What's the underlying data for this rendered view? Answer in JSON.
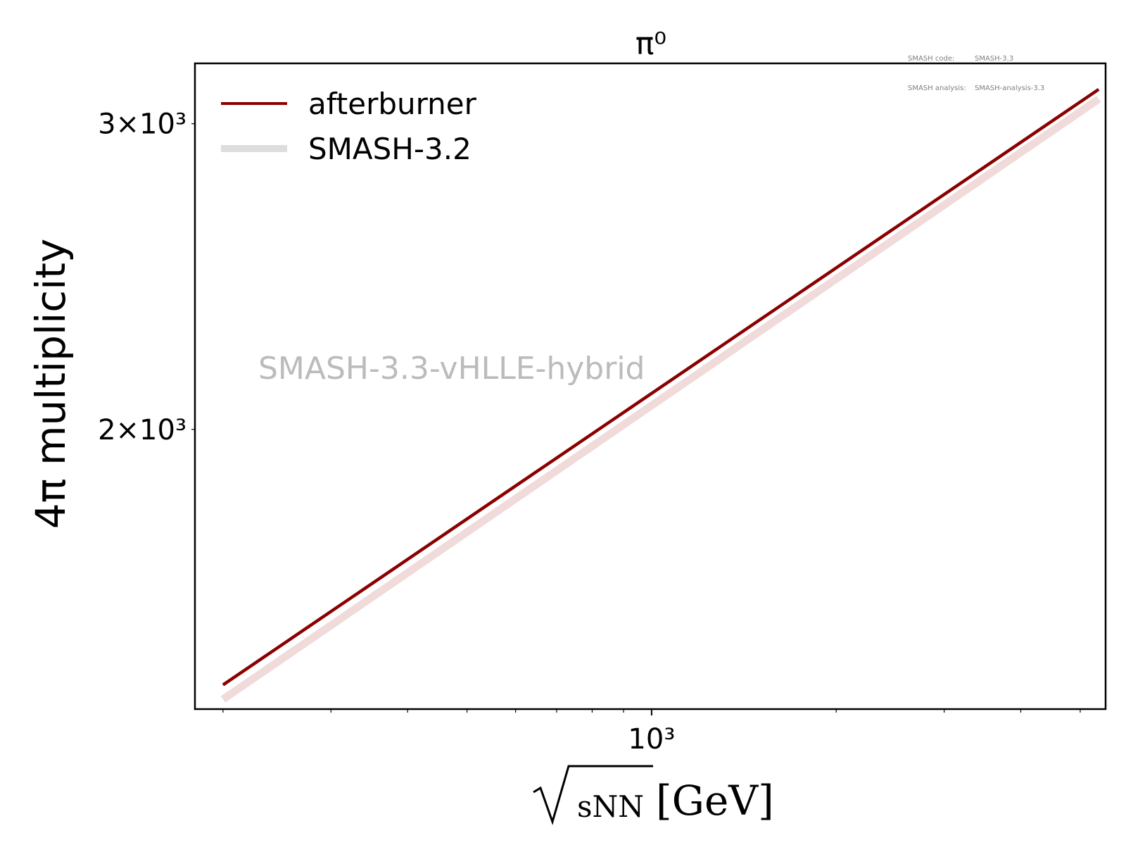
{
  "header_info": {
    "code_label": "SMASH code:",
    "code_value": "SMASH-3.3",
    "analysis_label": "SMASH analysis:",
    "analysis_value": "SMASH-analysis-3.3"
  },
  "chart_data": {
    "type": "line",
    "title": "π⁰",
    "xlabel": "√sNN [GeV]",
    "ylabel": "4π multiplicity",
    "x_scale": "log",
    "y_scale": "log",
    "xlim": [
      180,
      5500
    ],
    "ylim": [
      1380,
      3250
    ],
    "x_ticks": [
      {
        "value": 1000,
        "label": "10³"
      }
    ],
    "x_minor_ticks": [
      200,
      300,
      400,
      500,
      600,
      700,
      800,
      900,
      2000,
      3000,
      4000,
      5000
    ],
    "y_ticks": [
      {
        "value": 2000,
        "label": "2×10³"
      },
      {
        "value": 3000,
        "label": "3×10³"
      }
    ],
    "watermark": "SMASH-3.3-vHLLE-hybrid",
    "legend_position": "top-left",
    "colors": {
      "afterburner": "#8b0000",
      "smash32": "#f0dada",
      "smash32_legend": "#dddddd",
      "watermark": "#bbbbbb"
    },
    "series": [
      {
        "name": "afterburner",
        "x": [
          200,
          5360
        ],
        "y": [
          1425,
          3140
        ]
      },
      {
        "name": "SMASH-3.2",
        "x": [
          200,
          5360
        ],
        "y": [
          1398,
          3100
        ]
      }
    ]
  }
}
